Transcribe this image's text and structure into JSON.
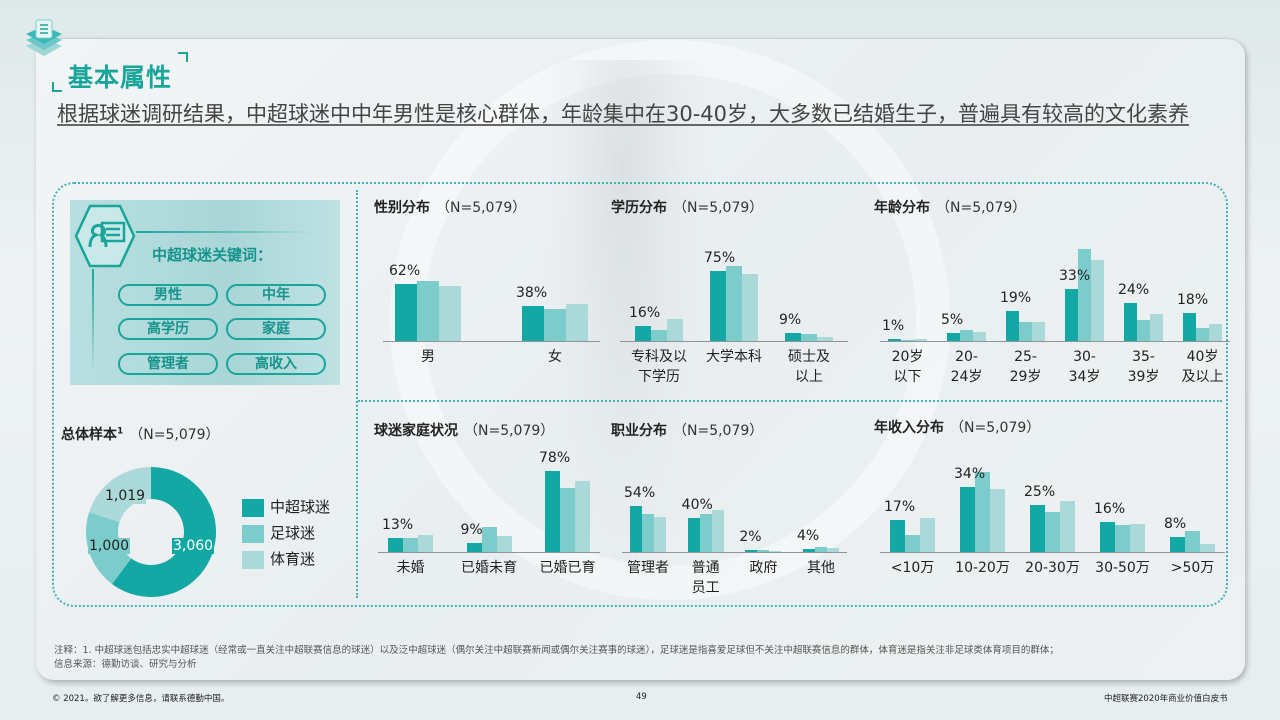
{
  "section": {
    "title": "基本属性",
    "icon": "stacked-layers-icon"
  },
  "headline": "根据球迷调研结果，中超球迷中中年男性是核心群体，年龄集中在30-40岁，大多数已结婚生子，普遍具有较高的文化素养",
  "keywords": {
    "title": "中超球迷关键词：",
    "icon": "id-card-icon",
    "items": [
      "男性",
      "中年",
      "高学历",
      "家庭",
      "管理者",
      "高收入"
    ]
  },
  "colors": {
    "super_league_fans": "#14a8a4",
    "football_fans": "#7ccccc",
    "sports_fans": "#abd9d9",
    "accent": "#1aa59b"
  },
  "sample": {
    "title": "总体样本",
    "superscript": "1",
    "n": "（N=5,079）",
    "legend": [
      "中超球迷",
      "足球迷",
      "体育迷"
    ]
  },
  "chart_data": [
    {
      "type": "pie",
      "title": "总体样本（N=5,079）",
      "categories": [
        "中超球迷",
        "足球迷",
        "体育迷"
      ],
      "values": [
        3060,
        1000,
        1019
      ],
      "labels": [
        "3,060",
        "1,000",
        "1,019"
      ]
    },
    {
      "type": "bar",
      "title": "性别分布",
      "n": "（N=5,079）",
      "categories": [
        "男",
        "女"
      ],
      "labels": [
        "62%",
        "38%"
      ],
      "series": [
        {
          "name": "中超球迷",
          "values": [
            62,
            38
          ]
        },
        {
          "name": "足球迷",
          "values": [
            65,
            35
          ]
        },
        {
          "name": "体育迷",
          "values": [
            60,
            40
          ]
        }
      ]
    },
    {
      "type": "bar",
      "title": "学历分布",
      "n": "（N=5,079）",
      "categories": [
        "专科及以下学历",
        "大学本科",
        "硕士及以上"
      ],
      "category_lines": [
        [
          "专科及以",
          "下学历"
        ],
        [
          "大学本科"
        ],
        [
          "硕士及",
          "以上"
        ]
      ],
      "labels": [
        "16%",
        "75%",
        "9%"
      ],
      "series": [
        {
          "name": "中超球迷",
          "values": [
            16,
            75,
            9
          ]
        },
        {
          "name": "足球迷",
          "values": [
            12,
            81,
            7
          ]
        },
        {
          "name": "体育迷",
          "values": [
            24,
            72,
            4
          ]
        }
      ]
    },
    {
      "type": "bar",
      "title": "年龄分布",
      "n": "（N=5,079）",
      "categories": [
        "20岁以下",
        "20-24岁",
        "25-29岁",
        "30-34岁",
        "35-39岁",
        "40岁及以上"
      ],
      "category_lines": [
        [
          "20岁",
          "以下"
        ],
        [
          "20-",
          "24岁"
        ],
        [
          "25-",
          "29岁"
        ],
        [
          "30-",
          "34岁"
        ],
        [
          "35-",
          "39岁"
        ],
        [
          "40岁",
          "及以上"
        ]
      ],
      "labels": [
        "1%",
        "5%",
        "19%",
        "33%",
        "24%",
        "18%"
      ],
      "series": [
        {
          "name": "中超球迷",
          "values": [
            1,
            5,
            19,
            33,
            24,
            18
          ]
        },
        {
          "name": "足球迷",
          "values": [
            0,
            7,
            12,
            58,
            13,
            8
          ]
        },
        {
          "name": "体育迷",
          "values": [
            1,
            6,
            12,
            51,
            17,
            11
          ]
        }
      ]
    },
    {
      "type": "bar",
      "title": "球迷家庭状况",
      "n": "（N=5,079）",
      "categories": [
        "未婚",
        "已婚未育",
        "已婚已育"
      ],
      "labels": [
        "13%",
        "9%",
        "78%"
      ],
      "series": [
        {
          "name": "中超球迷",
          "values": [
            13,
            9,
            78
          ]
        },
        {
          "name": "足球迷",
          "values": [
            13,
            24,
            62
          ]
        },
        {
          "name": "体育迷",
          "values": [
            16,
            15,
            68
          ]
        }
      ]
    },
    {
      "type": "bar",
      "title": "职业分布",
      "n": "（N=5,079）",
      "categories": [
        "管理者",
        "普通员工",
        "政府",
        "其他"
      ],
      "category_lines": [
        [
          "管理者"
        ],
        [
          "普通",
          "员工"
        ],
        [
          "政府"
        ],
        [
          "其他"
        ]
      ],
      "labels": [
        "54%",
        "40%",
        "2%",
        "4%"
      ],
      "series": [
        {
          "name": "中超球迷",
          "values": [
            54,
            40,
            2,
            4
          ]
        },
        {
          "name": "足球迷",
          "values": [
            45,
            45,
            2,
            6
          ]
        },
        {
          "name": "体育迷",
          "values": [
            41,
            50,
            1,
            5
          ]
        }
      ]
    },
    {
      "type": "bar",
      "title": "年收入分布",
      "n": "（N=5,079）",
      "categories": [
        "<10万",
        "10-20万",
        "20-30万",
        "30-50万",
        ">50万"
      ],
      "labels": [
        "17%",
        "34%",
        "25%",
        "16%",
        "8%"
      ],
      "series": [
        {
          "name": "中超球迷",
          "values": [
            17,
            34,
            25,
            16,
            8
          ]
        },
        {
          "name": "足球迷",
          "values": [
            9,
            42,
            21,
            14,
            11
          ]
        },
        {
          "name": "体育迷",
          "values": [
            18,
            33,
            27,
            15,
            4
          ]
        }
      ]
    }
  ],
  "notes": {
    "note1": "注释：1. 中超球迷包括忠实中超球迷（经常或一直关注中超联赛信息的球迷）以及泛中超球迷（偶尔关注中超联赛新闻或偶尔关注赛事的球迷），足球迷是指喜爱足球但不关注中超联赛信息的群体，体育迷是指关注非足球类体育项目的群体；",
    "source": "信息来源：德勤访谈、研究与分析"
  },
  "footer": {
    "copyright": "© 2021。欲了解更多信息，请联系德勤中国。",
    "page": "49",
    "doc_title": "中超联赛2020年商业价值白皮书"
  }
}
